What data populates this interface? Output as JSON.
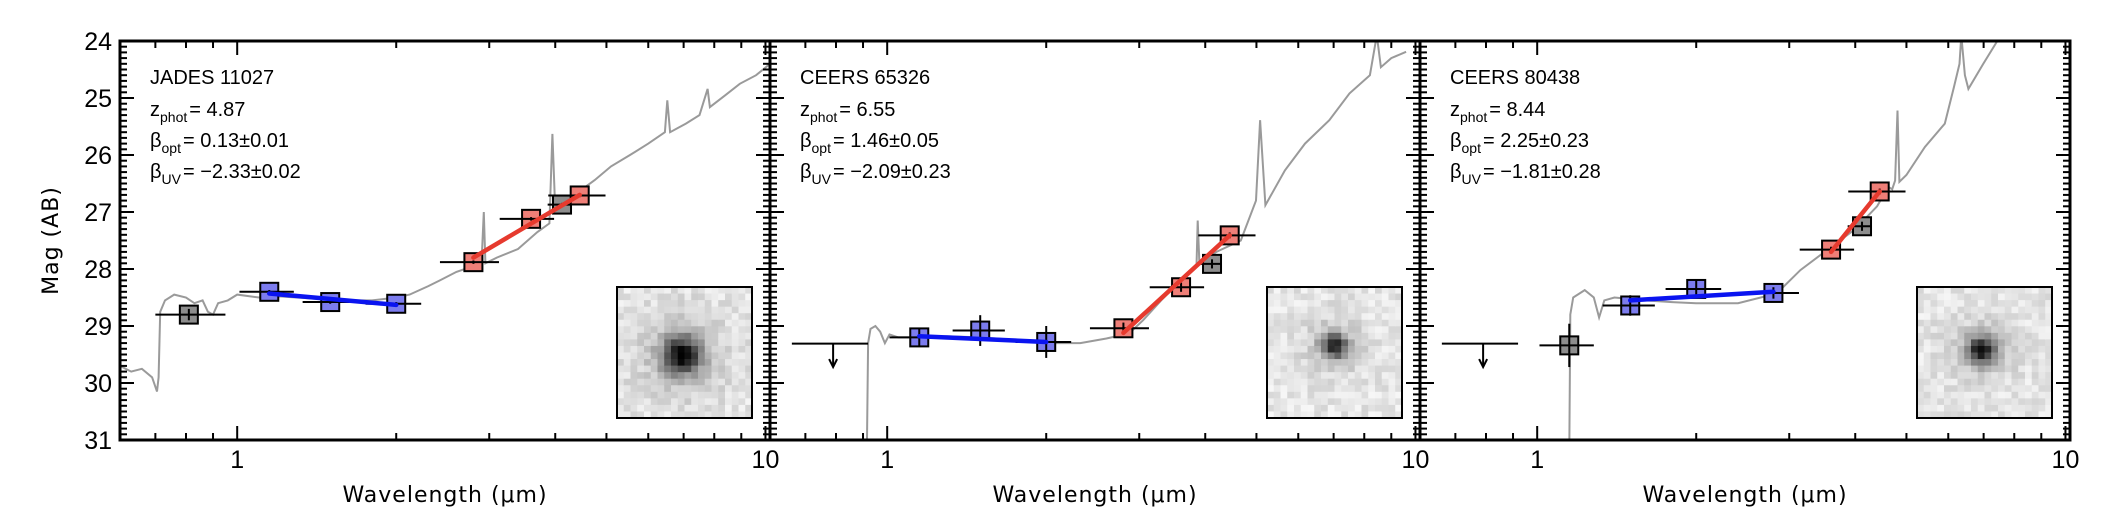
{
  "colors": {
    "spectrum": "#9a9a9a",
    "uv_fit_line": "#0a14f0",
    "uv_point_fill": "#7c7cee",
    "opt_fit_line": "#e63a2e",
    "opt_point_fill": "#ef7f78",
    "other_point_fill": "#8d8d8d",
    "axis": "#000000"
  },
  "chart_data": [
    {
      "type": "scatter",
      "panel": "JADES 11027",
      "xlabel": "Wavelength (μm)",
      "ylabel": "Mag (AB)",
      "xscale": "log",
      "xlim": [
        0.6,
        10.2
      ],
      "ylim": [
        31,
        24
      ],
      "x_tick_labels": [
        "1",
        "10"
      ],
      "y_tick_labels": [
        "24",
        "25",
        "26",
        "27",
        "28",
        "29",
        "30",
        "31"
      ],
      "annotation": {
        "name": "JADES 11027",
        "lines": [
          {
            "sym": "z",
            "sub": "phot",
            "value": "= 4.87"
          },
          {
            "sym": "β",
            "sub": "opt",
            "value": "= 0.13±0.01"
          },
          {
            "sym": "β",
            "sub": "UV",
            "value": "= −2.33±0.02"
          }
        ]
      },
      "points": [
        {
          "group": "other",
          "x": 0.81,
          "xlo": 0.7,
          "xhi": 0.95,
          "y": 28.8,
          "yerr": 0.1
        },
        {
          "group": "uv",
          "x": 1.15,
          "xlo": 1.01,
          "xhi": 1.28,
          "y": 28.4,
          "yerr": 0.03
        },
        {
          "group": "uv",
          "x": 1.5,
          "xlo": 1.33,
          "xhi": 1.67,
          "y": 28.58,
          "yerr": 0.03
        },
        {
          "group": "uv",
          "x": 2.0,
          "xlo": 1.75,
          "xhi": 2.23,
          "y": 28.61,
          "yerr": 0.03
        },
        {
          "group": "opt",
          "x": 2.8,
          "xlo": 2.42,
          "xhi": 3.13,
          "y": 27.88,
          "yerr": 0.03
        },
        {
          "group": "opt",
          "x": 3.6,
          "xlo": 3.14,
          "xhi": 3.98,
          "y": 27.12,
          "yerr": 0.03
        },
        {
          "group": "other",
          "x": 4.12,
          "xlo": 3.87,
          "xhi": 4.3,
          "y": 26.87,
          "yerr": 0.03
        },
        {
          "group": "opt",
          "x": 4.45,
          "xlo": 3.88,
          "xhi": 4.98,
          "y": 26.71,
          "yerr": 0.03
        }
      ],
      "upper_limits": [],
      "fits": [
        {
          "group": "uv",
          "x": [
            1.15,
            2.0
          ],
          "y": [
            28.43,
            28.63
          ]
        },
        {
          "group": "opt",
          "x": [
            2.8,
            4.45
          ],
          "y": [
            27.8,
            26.7
          ]
        }
      ],
      "spectrum": [
        [
          0.6,
          29.7
        ],
        [
          0.63,
          29.8
        ],
        [
          0.66,
          29.75
        ],
        [
          0.69,
          29.9
        ],
        [
          0.705,
          30.15
        ],
        [
          0.71,
          29.9
        ],
        [
          0.715,
          28.75
        ],
        [
          0.73,
          28.55
        ],
        [
          0.76,
          28.45
        ],
        [
          0.8,
          28.5
        ],
        [
          0.83,
          28.6
        ],
        [
          0.86,
          28.55
        ],
        [
          0.88,
          28.75
        ],
        [
          0.9,
          28.8
        ],
        [
          0.92,
          28.6
        ],
        [
          0.96,
          28.55
        ],
        [
          1.0,
          28.45
        ],
        [
          1.1,
          28.5
        ],
        [
          1.2,
          28.48
        ],
        [
          1.4,
          28.52
        ],
        [
          1.6,
          28.55
        ],
        [
          1.8,
          28.55
        ],
        [
          2.0,
          28.5
        ],
        [
          2.12,
          28.45
        ],
        [
          2.3,
          28.3
        ],
        [
          2.42,
          28.2
        ],
        [
          2.6,
          28.05
        ],
        [
          2.8,
          27.95
        ],
        [
          2.9,
          27.9
        ],
        [
          2.93,
          27.0
        ],
        [
          2.95,
          27.9
        ],
        [
          3.1,
          27.8
        ],
        [
          3.4,
          27.65
        ],
        [
          3.7,
          27.35
        ],
        [
          3.9,
          27.2
        ],
        [
          3.95,
          25.63
        ],
        [
          4.0,
          26.95
        ],
        [
          4.2,
          26.85
        ],
        [
          4.5,
          26.6
        ],
        [
          4.75,
          26.44
        ],
        [
          5.1,
          26.2
        ],
        [
          5.54,
          26.0
        ],
        [
          6.0,
          25.8
        ],
        [
          6.45,
          25.6
        ],
        [
          6.52,
          25.04
        ],
        [
          6.6,
          25.6
        ],
        [
          7.07,
          25.45
        ],
        [
          7.5,
          25.3
        ],
        [
          7.77,
          24.84
        ],
        [
          7.85,
          25.16
        ],
        [
          8.4,
          24.95
        ],
        [
          8.94,
          24.75
        ],
        [
          9.6,
          24.6
        ],
        [
          10.2,
          24.4
        ]
      ],
      "inset": {
        "blob_x": 0.48,
        "blob_y": 0.52,
        "blob_size": 0.14,
        "blob_depth": 0.85
      }
    },
    {
      "type": "scatter",
      "panel": "CEERS 65326",
      "xlabel": "Wavelength (μm)",
      "xscale": "log",
      "xlim": [
        0.6,
        10.2
      ],
      "ylim": [
        31,
        24
      ],
      "x_tick_labels": [
        "1",
        "10"
      ],
      "annotation": {
        "name": "CEERS 65326",
        "lines": [
          {
            "sym": "z",
            "sub": "phot",
            "value": "= 6.55"
          },
          {
            "sym": "β",
            "sub": "opt",
            "value": "= 1.46±0.05"
          },
          {
            "sym": "β",
            "sub": "UV",
            "value": "= −2.09±0.23"
          }
        ]
      },
      "points": [
        {
          "group": "uv",
          "x": 1.15,
          "xlo": 1.01,
          "xhi": 1.28,
          "y": 29.2,
          "yerr": 0.15
        },
        {
          "group": "uv",
          "x": 1.5,
          "xlo": 1.33,
          "xhi": 1.67,
          "y": 29.08,
          "yerr": 0.27
        },
        {
          "group": "uv",
          "x": 2.0,
          "xlo": 1.75,
          "xhi": 2.23,
          "y": 29.28,
          "yerr": 0.28
        },
        {
          "group": "opt",
          "x": 2.8,
          "xlo": 2.42,
          "xhi": 3.13,
          "y": 29.04,
          "yerr": 0.1
        },
        {
          "group": "opt",
          "x": 3.6,
          "xlo": 3.14,
          "xhi": 3.98,
          "y": 28.32,
          "yerr": 0.08
        },
        {
          "group": "other",
          "x": 4.12,
          "xlo": 3.87,
          "xhi": 4.3,
          "y": 27.91,
          "yerr": 0.08
        },
        {
          "group": "opt",
          "x": 4.45,
          "xlo": 3.88,
          "xhi": 4.98,
          "y": 27.41,
          "yerr": 0.05
        }
      ],
      "upper_limits": [
        {
          "x": 0.79,
          "xlo": 0.66,
          "xhi": 0.92,
          "y": 29.31,
          "arrow_to": 29.72
        }
      ],
      "fits": [
        {
          "group": "uv",
          "x": [
            1.15,
            2.0
          ],
          "y": [
            29.18,
            29.28
          ]
        },
        {
          "group": "opt",
          "x": [
            2.8,
            4.45
          ],
          "y": [
            29.12,
            27.41
          ]
        }
      ],
      "spectrum": [
        [
          0.915,
          31.3
        ],
        [
          0.92,
          29.3
        ],
        [
          0.93,
          29.05
        ],
        [
          0.95,
          29.0
        ],
        [
          0.97,
          29.1
        ],
        [
          0.99,
          29.3
        ],
        [
          1.01,
          29.15
        ],
        [
          1.05,
          29.2
        ],
        [
          1.15,
          29.2
        ],
        [
          1.3,
          29.18
        ],
        [
          1.5,
          29.2
        ],
        [
          1.8,
          29.25
        ],
        [
          2.0,
          29.3
        ],
        [
          2.32,
          29.3
        ],
        [
          2.6,
          29.22
        ],
        [
          2.87,
          29.13
        ],
        [
          3.05,
          28.9
        ],
        [
          3.3,
          28.55
        ],
        [
          3.6,
          28.2
        ],
        [
          3.85,
          27.95
        ],
        [
          3.87,
          27.15
        ],
        [
          3.9,
          27.9
        ],
        [
          4.2,
          27.7
        ],
        [
          4.67,
          27.5
        ],
        [
          4.99,
          26.8
        ],
        [
          5.08,
          25.39
        ],
        [
          5.2,
          26.88
        ],
        [
          5.66,
          26.27
        ],
        [
          6.18,
          25.8
        ],
        [
          6.87,
          25.39
        ],
        [
          7.5,
          24.92
        ],
        [
          8.2,
          24.6
        ],
        [
          8.45,
          23.9
        ],
        [
          8.6,
          24.46
        ],
        [
          9.0,
          24.3
        ],
        [
          9.6,
          24.19
        ]
      ],
      "inset": {
        "blob_x": 0.5,
        "blob_y": 0.45,
        "blob_size": 0.09,
        "blob_depth": 0.75
      }
    },
    {
      "type": "scatter",
      "panel": "CEERS 80438",
      "xlabel": "Wavelength (μm)",
      "xscale": "log",
      "xlim": [
        0.6,
        10.2
      ],
      "ylim": [
        31,
        24
      ],
      "x_tick_labels": [
        "1",
        "10"
      ],
      "annotation": {
        "name": "CEERS 80438",
        "lines": [
          {
            "sym": "z",
            "sub": "phot",
            "value": "= 8.44"
          },
          {
            "sym": "β",
            "sub": "opt",
            "value": "= 2.25±0.23"
          },
          {
            "sym": "β",
            "sub": "UV",
            "value": "= −1.81±0.28"
          }
        ]
      },
      "points": [
        {
          "group": "other",
          "x": 1.15,
          "xlo": 1.01,
          "xhi": 1.28,
          "y": 29.34,
          "yerr": 0.38
        },
        {
          "group": "uv",
          "x": 1.5,
          "xlo": 1.33,
          "xhi": 1.67,
          "y": 28.64,
          "yerr": 0.18
        },
        {
          "group": "uv",
          "x": 2.0,
          "xlo": 1.75,
          "xhi": 2.23,
          "y": 28.35,
          "yerr": 0.15
        },
        {
          "group": "uv",
          "x": 2.8,
          "xlo": 2.42,
          "xhi": 3.13,
          "y": 28.42,
          "yerr": 0.1
        },
        {
          "group": "opt",
          "x": 3.6,
          "xlo": 3.14,
          "xhi": 3.98,
          "y": 27.66,
          "yerr": 0.05
        },
        {
          "group": "other",
          "x": 4.12,
          "xlo": 3.87,
          "xhi": 4.3,
          "y": 27.25,
          "yerr": 0.08
        },
        {
          "group": "opt",
          "x": 4.45,
          "xlo": 3.88,
          "xhi": 4.98,
          "y": 26.64,
          "yerr": 0.05
        }
      ],
      "upper_limits": [
        {
          "x": 0.79,
          "xlo": 0.66,
          "xhi": 0.92,
          "y": 29.31,
          "arrow_to": 29.72
        }
      ],
      "fits": [
        {
          "group": "uv",
          "x": [
            1.5,
            2.8
          ],
          "y": [
            28.55,
            28.4
          ]
        },
        {
          "group": "opt",
          "x": [
            3.6,
            4.45
          ],
          "y": [
            27.7,
            26.64
          ]
        }
      ],
      "spectrum": [
        [
          1.15,
          31.2
        ],
        [
          1.155,
          28.8
        ],
        [
          1.17,
          28.5
        ],
        [
          1.23,
          28.37
        ],
        [
          1.28,
          28.5
        ],
        [
          1.31,
          28.85
        ],
        [
          1.34,
          28.55
        ],
        [
          1.4,
          28.5
        ],
        [
          1.6,
          28.55
        ],
        [
          1.8,
          28.58
        ],
        [
          2.0,
          28.6
        ],
        [
          2.4,
          28.6
        ],
        [
          2.84,
          28.43
        ],
        [
          3.15,
          28.02
        ],
        [
          3.5,
          27.7
        ],
        [
          4.0,
          27.3
        ],
        [
          4.4,
          26.9
        ],
        [
          4.62,
          26.56
        ],
        [
          4.7,
          26.6
        ],
        [
          4.76,
          26.45
        ],
        [
          4.81,
          25.22
        ],
        [
          4.85,
          26.47
        ],
        [
          5.0,
          26.35
        ],
        [
          5.42,
          25.86
        ],
        [
          5.91,
          25.45
        ],
        [
          6.15,
          24.81
        ],
        [
          6.3,
          24.4
        ],
        [
          6.35,
          23.9
        ],
        [
          6.45,
          24.6
        ],
        [
          6.55,
          24.84
        ],
        [
          6.99,
          24.4
        ],
        [
          7.43,
          24.0
        ],
        [
          7.7,
          23.8
        ]
      ],
      "inset": {
        "blob_x": 0.48,
        "blob_y": 0.48,
        "blob_size": 0.1,
        "blob_depth": 0.8
      }
    }
  ]
}
